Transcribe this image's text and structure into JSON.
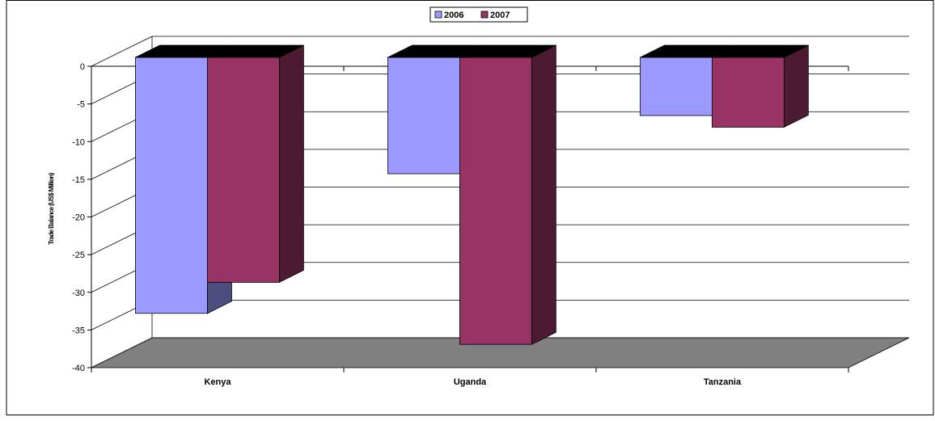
{
  "chart_data": {
    "type": "bar",
    "categories": [
      "Kenya",
      "Uganda",
      "Tanzania"
    ],
    "series": [
      {
        "name": "2006",
        "values": [
          -33,
          -15,
          -7.5
        ],
        "color": "#9999ff"
      },
      {
        "name": "2007",
        "values": [
          -29,
          -37,
          -9
        ],
        "color": "#993366"
      }
    ],
    "ylabel": "Trade Balance (US$ Million)",
    "xlabel": "",
    "ylim": [
      -40,
      0
    ],
    "yticks": [
      0,
      -5,
      -10,
      -15,
      -20,
      -25,
      -30,
      -35,
      -40
    ],
    "grid": true,
    "legend_position": "top-center",
    "style": "3d-clustered-column",
    "floor_color": "#808080"
  }
}
